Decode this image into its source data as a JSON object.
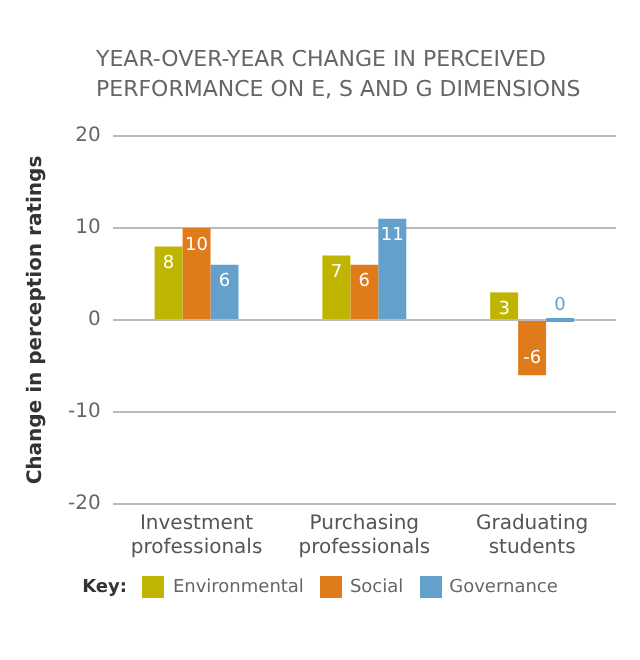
{
  "chart_data": {
    "type": "bar",
    "title": "YEAR-OVER-YEAR CHANGE IN PERCEIVED PERFORMANCE ON E, S AND G DIMENSIONS",
    "ylabel": "Change in perception ratings",
    "legend_title": "Key:",
    "categories": [
      "Investment professionals",
      "Purchasing professionals",
      "Graduating students"
    ],
    "series": [
      {
        "name": "Environmental",
        "color": "#bfb500",
        "values": [
          8,
          7,
          3
        ]
      },
      {
        "name": "Social",
        "color": "#e07b1c",
        "values": [
          10,
          6,
          -6
        ]
      },
      {
        "name": "Governance",
        "color": "#64a0cc",
        "values": [
          6,
          11,
          0
        ]
      }
    ],
    "ylim": [
      -20,
      20
    ],
    "yticks": [
      -20,
      -10,
      0,
      10,
      20
    ],
    "grid": "y",
    "legend": "bottom",
    "data_labels": true
  }
}
